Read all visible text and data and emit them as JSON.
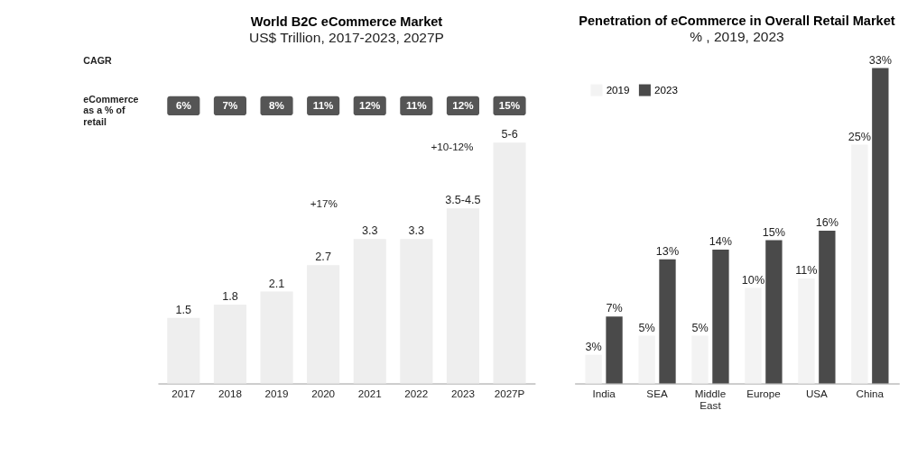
{
  "chart_data": [
    {
      "type": "bar",
      "title": "World B2C eCommerce Market",
      "subtitle": "US$ Trillion, 2017-2023, 2027P",
      "categories": [
        "2017",
        "2018",
        "2019",
        "2020",
        "2021",
        "2022",
        "2023",
        "2027P"
      ],
      "series": [
        {
          "color": "#eeeeee",
          "values": [
            1.5,
            1.8,
            2.1,
            2.7,
            3.3,
            3.3,
            4,
            5.5
          ],
          "value_labels": [
            "1.5",
            "1.8",
            "2.1",
            "2.7",
            "3.3",
            "3.3",
            "3.5-4.5",
            "5-6"
          ]
        }
      ],
      "tick_labels": "x",
      "annotations": [
        "CAGR",
        "eCommerce as a % of retail",
        "+17%",
        "+10-12%",
        "6%",
        "7%",
        "8%",
        "11%",
        "12%",
        "11%",
        "12%",
        "15%"
      ]
    },
    {
      "type": "bar",
      "title": "Penetration of eCommerce  in Overall Retail Market",
      "subtitle": "% , 2019, 2023",
      "categories": [
        "India",
        "SEA",
        "Middle East",
        "Europe",
        "USA",
        "China"
      ],
      "series": [
        {
          "name": "2019",
          "color": "#f3f3f3",
          "values": [
            3,
            5,
            5,
            10,
            11,
            25
          ],
          "value_labels": [
            "3%",
            "5%",
            "5%",
            "10%",
            "11%",
            "25%"
          ]
        },
        {
          "name": "2023",
          "color": "#4a4a4a",
          "values": [
            7,
            13,
            14,
            15,
            16,
            33
          ],
          "value_labels": [
            "7%",
            "13%",
            "14%",
            "15%",
            "16%",
            "33%"
          ]
        }
      ],
      "tick_labels": "x",
      "legend": "top left"
    }
  ]
}
